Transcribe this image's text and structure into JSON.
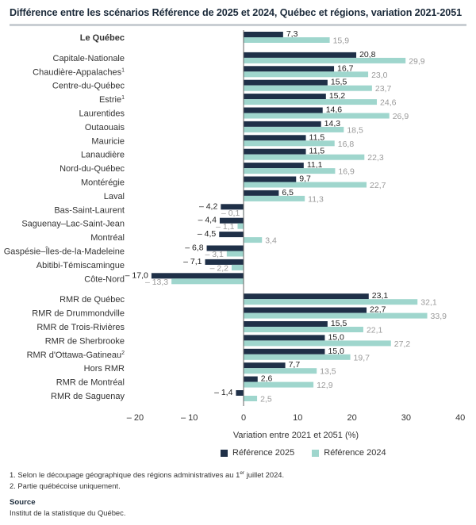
{
  "title": "Différence entre les scénarios Référence de 2025 et 2024, Québec et régions, variation 2021-2051",
  "colors": {
    "ref2025": "#1f3048",
    "ref2024": "#9fd6cd",
    "label2024": "#9a9a9a",
    "axis": "#555555"
  },
  "chart_data": {
    "type": "bar",
    "orientation": "horizontal",
    "xlabel": "Variation entre 2021 et 2051 (%)",
    "xlim": [
      -20,
      40
    ],
    "xticks": [
      -20,
      -10,
      0,
      10,
      20,
      30,
      40
    ],
    "xtick_labels": [
      "– 20",
      "– 10",
      "0",
      "10",
      "20",
      "30",
      "40"
    ],
    "legend_position": "bottom",
    "series": [
      {
        "name": "Référence 2025",
        "color": "#1f3048"
      },
      {
        "name": "Référence 2024",
        "color": "#9fd6cd"
      }
    ],
    "rows": [
      {
        "label": "Le Québec",
        "bold": true,
        "group": 0,
        "v2025": 7.3,
        "l2025": "7,3",
        "v2024": 15.9,
        "l2024": "15,9"
      },
      {
        "label": "Capitale-Nationale",
        "group": 1,
        "v2025": 20.8,
        "l2025": "20,8",
        "v2024": 29.9,
        "l2024": "29,9"
      },
      {
        "label": "Chaudière-Appalaches",
        "sup": "1",
        "group": 1,
        "v2025": 16.7,
        "l2025": "16,7",
        "v2024": 23.0,
        "l2024": "23,0"
      },
      {
        "label": "Centre-du-Québec",
        "group": 1,
        "v2025": 15.5,
        "l2025": "15,5",
        "v2024": 23.7,
        "l2024": "23,7"
      },
      {
        "label": "Estrie",
        "sup": "1",
        "group": 1,
        "v2025": 15.2,
        "l2025": "15,2",
        "v2024": 24.6,
        "l2024": "24,6"
      },
      {
        "label": "Laurentides",
        "group": 1,
        "v2025": 14.6,
        "l2025": "14,6",
        "v2024": 26.9,
        "l2024": "26,9"
      },
      {
        "label": "Outaouais",
        "group": 1,
        "v2025": 14.3,
        "l2025": "14,3",
        "v2024": 18.5,
        "l2024": "18,5"
      },
      {
        "label": "Mauricie",
        "group": 1,
        "v2025": 11.5,
        "l2025": "11,5",
        "v2024": 16.8,
        "l2024": "16,8"
      },
      {
        "label": "Lanaudière",
        "group": 1,
        "v2025": 11.5,
        "l2025": "11,5",
        "v2024": 22.3,
        "l2024": "22,3"
      },
      {
        "label": "Nord-du-Québec",
        "group": 1,
        "v2025": 11.1,
        "l2025": "11,1",
        "v2024": 16.9,
        "l2024": "16,9"
      },
      {
        "label": "Montérégie",
        "group": 1,
        "v2025": 9.7,
        "l2025": "9,7",
        "v2024": 22.7,
        "l2024": "22,7"
      },
      {
        "label": "Laval",
        "group": 1,
        "v2025": 6.5,
        "l2025": "6,5",
        "v2024": 11.3,
        "l2024": "11,3"
      },
      {
        "label": "Bas-Saint-Laurent",
        "group": 1,
        "v2025": -4.2,
        "l2025": "– 4,2",
        "v2024": -0.1,
        "l2024": "– 0,1"
      },
      {
        "label": "Saguenay–Lac-Saint-Jean",
        "group": 1,
        "v2025": -4.4,
        "l2025": "– 4,4",
        "v2024": -1.1,
        "l2024": "– 1,1"
      },
      {
        "label": "Montréal",
        "group": 1,
        "v2025": -4.5,
        "l2025": "– 4,5",
        "v2024": 3.4,
        "l2024": "3,4"
      },
      {
        "label": "Gaspésie–Îles-de-la-Madeleine",
        "group": 1,
        "v2025": -6.8,
        "l2025": "– 6,8",
        "v2024": -3.1,
        "l2024": "– 3,1"
      },
      {
        "label": "Abitibi-Témiscamingue",
        "group": 1,
        "v2025": -7.1,
        "l2025": "– 7,1",
        "v2024": -2.2,
        "l2024": "– 2,2"
      },
      {
        "label": "Côte-Nord",
        "group": 1,
        "v2025": -17.0,
        "l2025": "– 17,0",
        "v2024": -13.3,
        "l2024": "– 13,3"
      },
      {
        "label": "RMR de Québec",
        "group": 2,
        "v2025": 23.1,
        "l2025": "23,1",
        "v2024": 32.1,
        "l2024": "32,1"
      },
      {
        "label": "RMR de Drummondville",
        "group": 2,
        "v2025": 22.7,
        "l2025": "22,7",
        "v2024": 33.9,
        "l2024": "33,9"
      },
      {
        "label": "RMR de Trois-Rivières",
        "group": 2,
        "v2025": 15.5,
        "l2025": "15,5",
        "v2024": 22.1,
        "l2024": "22,1"
      },
      {
        "label": "RMR de Sherbrooke",
        "group": 2,
        "v2025": 15.0,
        "l2025": "15,0",
        "v2024": 27.2,
        "l2024": "27,2"
      },
      {
        "label": "RMR d'Ottawa-Gatineau",
        "sup": "2",
        "group": 2,
        "v2025": 15.0,
        "l2025": "15,0",
        "v2024": 19.7,
        "l2024": "19,7"
      },
      {
        "label": "Hors RMR",
        "group": 2,
        "v2025": 7.7,
        "l2025": "7,7",
        "v2024": 13.5,
        "l2024": "13,5"
      },
      {
        "label": "RMR de Montréal",
        "group": 2,
        "v2025": 2.6,
        "l2025": "2,6",
        "v2024": 12.9,
        "l2024": "12,9"
      },
      {
        "label": "RMR de Saguenay",
        "group": 2,
        "v2025": -1.4,
        "l2025": "– 1,4",
        "v2024": 2.5,
        "l2024": "2,5"
      }
    ]
  },
  "legend": {
    "ref2025": "Référence 2025",
    "ref2024": "Référence 2024"
  },
  "notes": {
    "n1_pre": "1. Selon le découpage géographique des régions administratives au 1",
    "n1_sup": "er",
    "n1_post": " juillet 2024.",
    "n2": "2. Partie québécoise uniquement."
  },
  "source": {
    "heading": "Source",
    "text": "Institut de la statistique du Québec."
  }
}
